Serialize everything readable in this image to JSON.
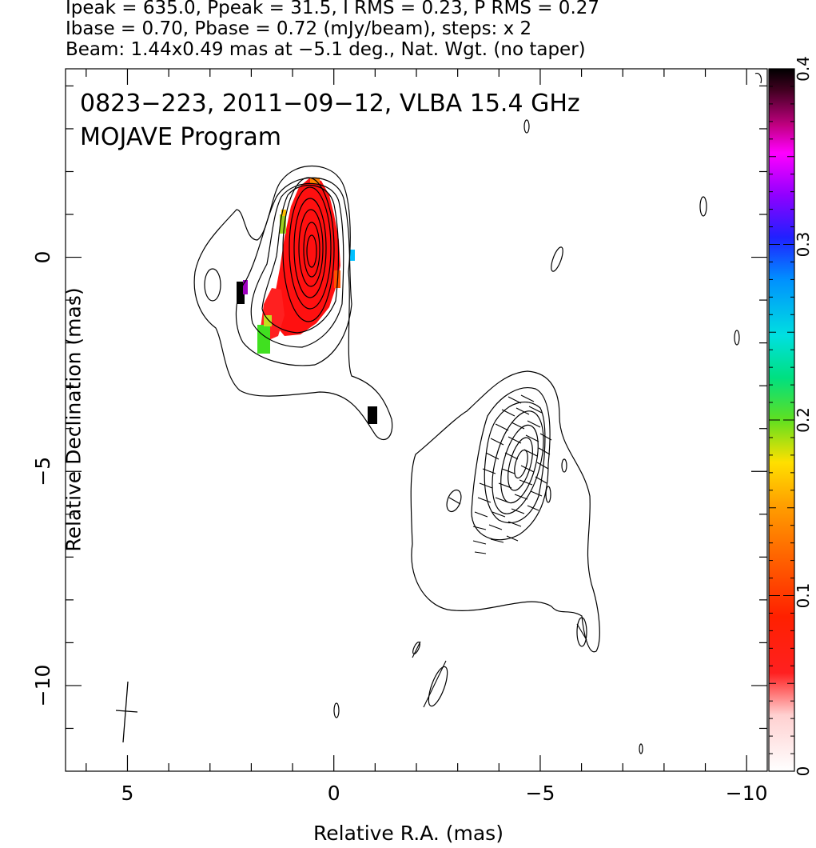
{
  "header": {
    "line1": "Ipeak = 635.0, Ppeak = 31.5, I RMS = 0.23, P RMS = 0.27",
    "line2": "Ibase = 0.70, Pbase = 0.72 (mJy/beam), steps: x 2",
    "line3": "Beam: 1.44x0.49 mas at −5.1 deg., Nat. Wgt. (no taper)"
  },
  "chart_data": {
    "type": "heatmap",
    "title": "0823−223, 2011−09−12, VLBA 15.4 GHz",
    "subtitle": "MOJAVE Program",
    "xlabel": "Relative R.A. (mas)",
    "ylabel": "Relative Declination (mas)",
    "xlim": [
      6.5,
      -10.5
    ],
    "ylim": [
      -12,
      4.4
    ],
    "x_ticks": [
      5,
      0,
      -5,
      -10
    ],
    "x_tick_labels": [
      "5",
      "0",
      "−5",
      "−10"
    ],
    "y_ticks": [
      0,
      -5,
      -10
    ],
    "y_tick_labels": [
      "0",
      "−5",
      "−10"
    ],
    "colorbar": {
      "range": [
        0,
        0.4
      ],
      "ticks": [
        0,
        0.1,
        0.2,
        0.3,
        0.4
      ],
      "tick_labels": [
        "0",
        "0.1",
        "0.2",
        "0.3",
        "0.4"
      ]
    },
    "core": {
      "x": 0.0,
      "y": 0.0,
      "peak_color_value": 0.05
    },
    "jet_component": {
      "x": -4.95,
      "y": -4.9
    },
    "beam": {
      "major_mas": 1.44,
      "minor_mas": 0.49,
      "pa_deg": -5.1,
      "center": [
        4.3,
        -10.8
      ]
    }
  }
}
